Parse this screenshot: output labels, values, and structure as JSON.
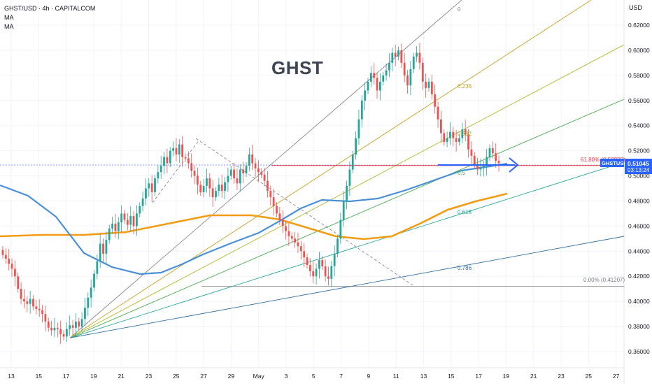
{
  "header": {
    "symbol_line": "GHST/USD · 4h · CAPITALCOM",
    "indicator_1": "MA",
    "indicator_2": "MA",
    "currency": "USD"
  },
  "annotation_title": "GHST",
  "price_label": {
    "ticker": "GHSTUSD",
    "price": "0.51045",
    "countdown": "03:13:24"
  },
  "colors": {
    "up": "#26a69a",
    "down": "#ef5350",
    "ma_fast": "#4a90d9",
    "ma_slow": "#f39c12",
    "label_bg": "#2962ff",
    "hline": "#f23645"
  },
  "fib_labels": {
    "top": "0",
    "l236": "0.236",
    "l382": "0.382",
    "l5": "0.5",
    "l618": "0.618",
    "l786": "0.786",
    "retr_618": "61.80% (0.50822)",
    "retr_0": "0.00% (0.41207)"
  },
  "chart_data": {
    "type": "candlestick",
    "timeframe": "4h",
    "ylim": [
      0.35,
      0.63
    ],
    "y_ticks": [
      0.36,
      0.38,
      0.4,
      0.42,
      0.44,
      0.46,
      0.48,
      0.5,
      0.52,
      0.54,
      0.56,
      0.58,
      0.6,
      0.62
    ],
    "y_tick_labels": [
      "0.36000",
      "0.38000",
      "0.40000",
      "0.42000",
      "0.44000",
      "0.46000",
      "0.48000",
      "0.50000",
      "0.52000",
      "0.54000",
      "0.56000",
      "0.58000",
      "0.60000",
      "0.62000"
    ],
    "x_tick_labels": [
      "13",
      "15",
      "17",
      "19",
      "21",
      "23",
      "25",
      "27",
      "29",
      "May",
      "3",
      "5",
      "7",
      "9",
      "11",
      "13",
      "15",
      "17",
      "19",
      "21",
      "23",
      "25",
      "27"
    ],
    "closes": [
      0.437,
      0.434,
      0.43,
      0.426,
      0.42,
      0.41,
      0.402,
      0.4,
      0.398,
      0.402,
      0.396,
      0.394,
      0.393,
      0.39,
      0.384,
      0.379,
      0.377,
      0.379,
      0.378,
      0.374,
      0.372,
      0.378,
      0.381,
      0.379,
      0.384,
      0.38,
      0.386,
      0.395,
      0.403,
      0.411,
      0.422,
      0.432,
      0.446,
      0.438,
      0.449,
      0.458,
      0.462,
      0.456,
      0.463,
      0.47,
      0.465,
      0.461,
      0.468,
      0.46,
      0.47,
      0.476,
      0.482,
      0.49,
      0.494,
      0.487,
      0.498,
      0.503,
      0.508,
      0.515,
      0.51,
      0.52,
      0.522,
      0.517,
      0.525,
      0.515,
      0.514,
      0.51,
      0.504,
      0.5,
      0.493,
      0.487,
      0.492,
      0.498,
      0.49,
      0.483,
      0.488,
      0.493,
      0.488,
      0.495,
      0.5,
      0.505,
      0.498,
      0.494,
      0.505,
      0.502,
      0.508,
      0.517,
      0.51,
      0.506,
      0.503,
      0.501,
      0.496,
      0.488,
      0.483,
      0.476,
      0.47,
      0.465,
      0.46,
      0.456,
      0.452,
      0.45,
      0.447,
      0.444,
      0.44,
      0.435,
      0.429,
      0.424,
      0.42,
      0.426,
      0.433,
      0.428,
      0.42,
      0.418,
      0.428,
      0.438,
      0.45,
      0.465,
      0.48,
      0.492,
      0.505,
      0.517,
      0.53,
      0.545,
      0.56,
      0.568,
      0.575,
      0.582,
      0.578,
      0.568,
      0.575,
      0.58,
      0.584,
      0.59,
      0.598,
      0.595,
      0.6,
      0.59,
      0.58,
      0.572,
      0.585,
      0.595,
      0.598,
      0.59,
      0.575,
      0.57,
      0.575,
      0.565,
      0.555,
      0.545,
      0.534,
      0.527,
      0.53,
      0.535,
      0.53,
      0.527,
      0.53,
      0.537,
      0.533,
      0.521,
      0.516,
      0.509,
      0.505,
      0.506,
      0.508,
      0.515,
      0.522,
      0.518,
      0.512,
      0.51
    ],
    "ma_fast_label": "MA",
    "ma_slow_label": "MA"
  }
}
